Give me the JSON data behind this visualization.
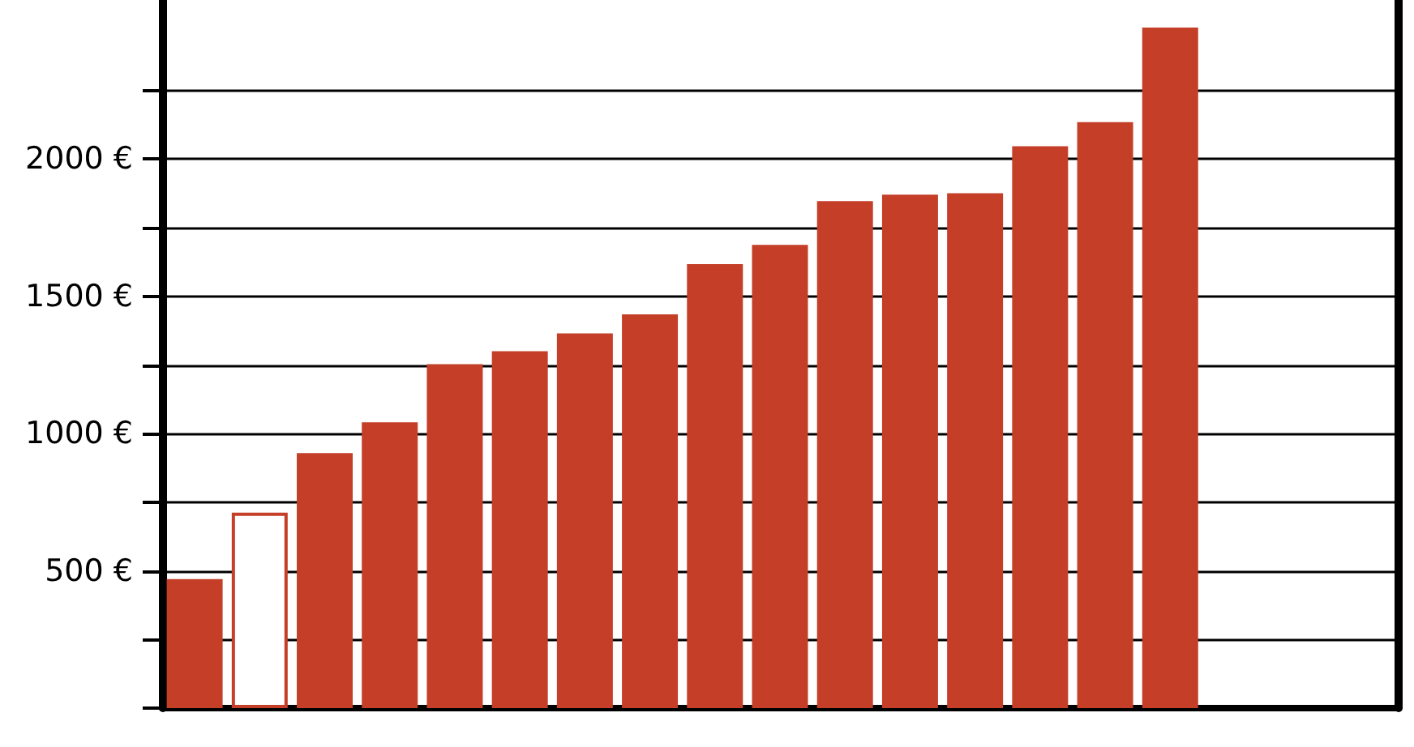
{
  "chart_data": {
    "type": "bar",
    "categories": [
      null,
      null,
      null,
      null,
      null,
      null,
      null,
      null,
      null,
      null,
      null,
      null,
      null,
      null,
      null,
      null,
      null,
      null,
      null
    ],
    "values": [
      470,
      712,
      929,
      1041,
      1253,
      1300,
      1365,
      1435,
      1618,
      1688,
      1847,
      1871,
      1876,
      2047,
      2135,
      2480,
      null,
      null,
      null
    ],
    "color": "#c43e28",
    "colors": [
      "#c43e28",
      "#ffffff",
      "#c43e28",
      "#c43e28",
      "#c43e28",
      "#c43e28",
      "#c43e28",
      "#c43e28",
      "#c43e28",
      "#c43e28",
      "#c43e28",
      "#c43e28",
      "#c43e28",
      "#c43e28",
      "#c43e28",
      "#c43e28",
      "#c43e28",
      "#c43e28",
      "#c43e28"
    ],
    "ylim": [
      0,
      2580
    ],
    "yticks": [
      {
        "value": 0,
        "label": null
      },
      {
        "value": 250,
        "label": null
      },
      {
        "value": 500,
        "label": "500 €"
      },
      {
        "value": 750,
        "label": null
      },
      {
        "value": 1000,
        "label": "1000 €"
      },
      {
        "value": 1250,
        "label": null
      },
      {
        "value": 1500,
        "label": "1500 €"
      },
      {
        "value": 1750,
        "label": null
      },
      {
        "value": 2000,
        "label": "2000 €"
      },
      {
        "value": 2250,
        "label": null
      }
    ],
    "grid": "y"
  }
}
